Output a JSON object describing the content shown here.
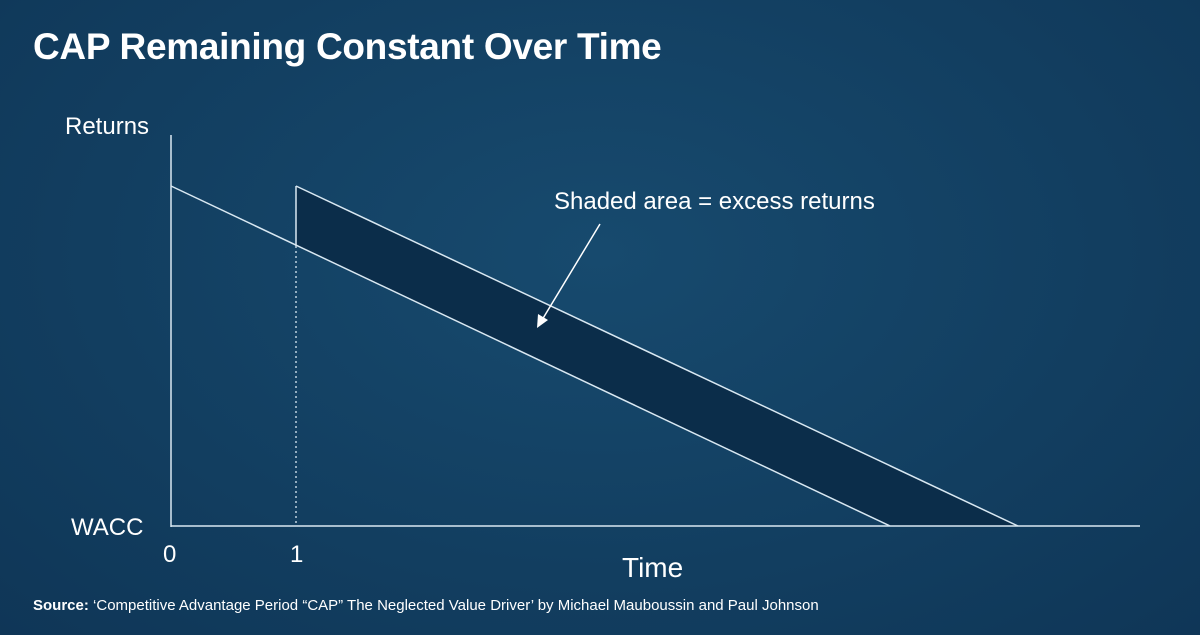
{
  "title": "CAP Remaining Constant Over Time",
  "y_axis_label": "Returns",
  "baseline_label": "WACC",
  "x_axis_label": "Time",
  "x_tick_0": "0",
  "x_tick_1": "1",
  "annotation": "Shaded area = excess returns",
  "source_label": "Source:",
  "source_text": "‘Competitive Advantage Period “CAP” The Neglected Value Driver’ by Michael Mauboussin and Paul Johnson",
  "colors": {
    "background": "#123e60",
    "shaded_area": "#0b2d4a",
    "lines": "#d9e8f2"
  }
}
